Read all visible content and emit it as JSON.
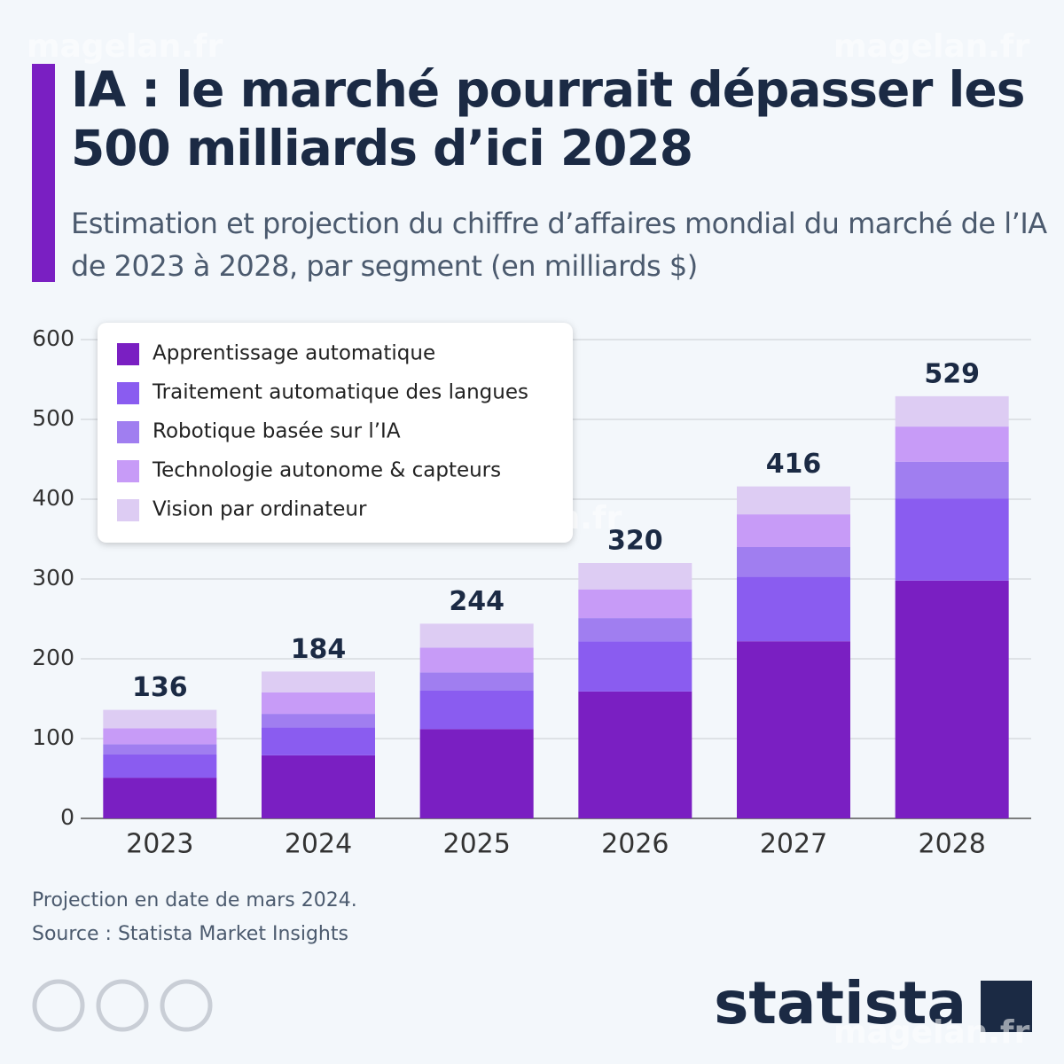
{
  "chart_data": {
    "type": "stacked_bar",
    "title": "IA : le marché pourrait dépasser les 500 milliards d’ici 2028",
    "subtitle": "Estimation et projection du chiffre d’affaires mondial du marché de l’IA de 2023 à 2028, par segment (en milliards $)",
    "categories": [
      "2023",
      "2024",
      "2025",
      "2026",
      "2027",
      "2028"
    ],
    "series": [
      {
        "name": "Apprentissage automatique",
        "color": "#7a1fc2",
        "values": [
          51,
          79,
          112,
          159,
          222,
          298
        ]
      },
      {
        "name": "Traitement automatique des langues",
        "color": "#8a5cf0",
        "values": [
          29,
          35,
          48,
          63,
          81,
          103
        ]
      },
      {
        "name": "Robotique basée sur l’IA",
        "color": "#a07ef0",
        "values": [
          13,
          17,
          23,
          29,
          37,
          46
        ]
      },
      {
        "name": "Technologie autonome & capteurs",
        "color": "#c79bf7",
        "values": [
          20,
          27,
          31,
          36,
          41,
          44
        ]
      },
      {
        "name": "Vision par ordinateur",
        "color": "#ddccf3",
        "values": [
          23,
          26,
          30,
          33,
          35,
          38
        ]
      }
    ],
    "totals": [
      136,
      184,
      244,
      320,
      416,
      529
    ],
    "ylim": [
      0,
      600
    ],
    "yticks": [
      0,
      100,
      200,
      300,
      400,
      500,
      600
    ],
    "grid": true,
    "legend": "top-left",
    "note": "Projection en date de mars 2024.",
    "source": "Source : Statista Market Insights"
  },
  "logo": "statista",
  "watermark": "magelan.fr"
}
